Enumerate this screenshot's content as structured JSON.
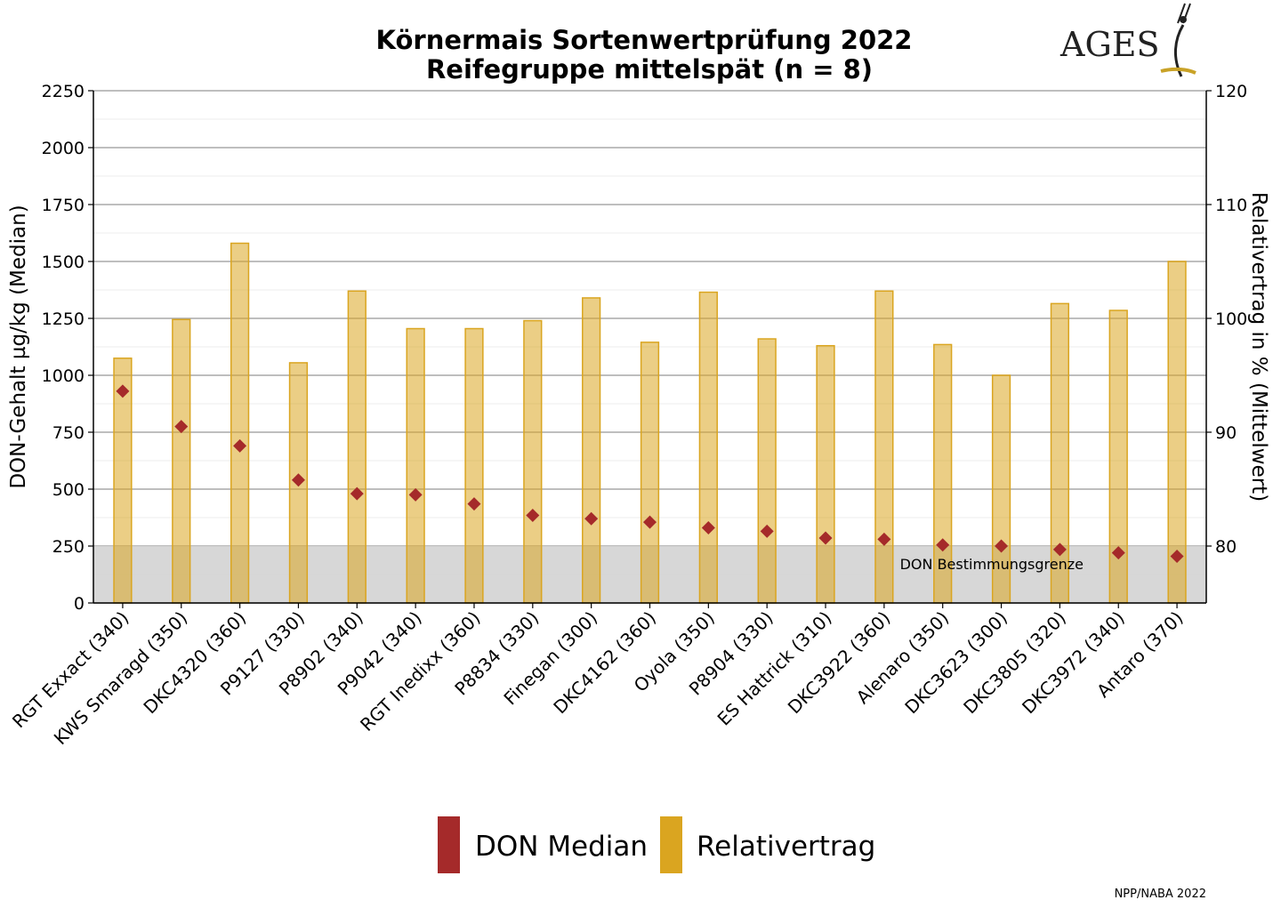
{
  "chart_data": {
    "type": "bar",
    "title": "Körnermais Sortenwertprüfung 2022",
    "subtitle": "Reifegruppe mittelspät (n = 8)",
    "ylabel": "DON-Gehalt µg/kg (Median)",
    "y2label": "Relativertrag in % (Mittelwert)",
    "ylim": [
      0,
      2250
    ],
    "y2lim": [
      75,
      120
    ],
    "yticks": [
      "0",
      "250",
      "500",
      "750",
      "1000",
      "1250",
      "1500",
      "1750",
      "2000",
      "2250"
    ],
    "y2ticks": [
      "80",
      "90",
      "100",
      "110",
      "120"
    ],
    "grid": true,
    "legend_position": "bottom",
    "categories": [
      "RGT Exxact (340)",
      "KWS Smaragd (350)",
      "DKC4320 (360)",
      "P9127 (330)",
      "P8902 (340)",
      "P9042 (340)",
      "RGT Inedixx (360)",
      "P8834 (330)",
      "Finegan (300)",
      "DKC4162 (360)",
      "Oyola (350)",
      "P8904 (330)",
      "ES Hattrick (310)",
      "DKC3922 (360)",
      "Alenaro (350)",
      "DKC3623 (300)",
      "DKC3805 (320)",
      "DKC3972 (340)",
      "Antaro (370)"
    ],
    "series": [
      {
        "name": "DON Median",
        "type": "scatter",
        "axis": "left",
        "color": "#a52a2a",
        "values": [
          930,
          775,
          690,
          540,
          480,
          475,
          435,
          385,
          370,
          355,
          330,
          315,
          285,
          280,
          255,
          250,
          235,
          220,
          205
        ]
      },
      {
        "name": "Relativertrag",
        "type": "bar",
        "axis": "right",
        "color": "#daa520",
        "values": [
          96.5,
          99.9,
          106.6,
          96.1,
          102.4,
          99.1,
          99.1,
          99.8,
          101.8,
          97.9,
          102.3,
          98.2,
          97.6,
          102.4,
          97.7,
          95.0,
          101.3,
          100.7,
          105.0
        ]
      }
    ],
    "threshold": {
      "value": 250,
      "label": "DON Bestimmungsgrenze",
      "color": "#d3d3d3"
    }
  },
  "logo": {
    "text": "AGES"
  },
  "credit": "NPP/NABA 2022"
}
